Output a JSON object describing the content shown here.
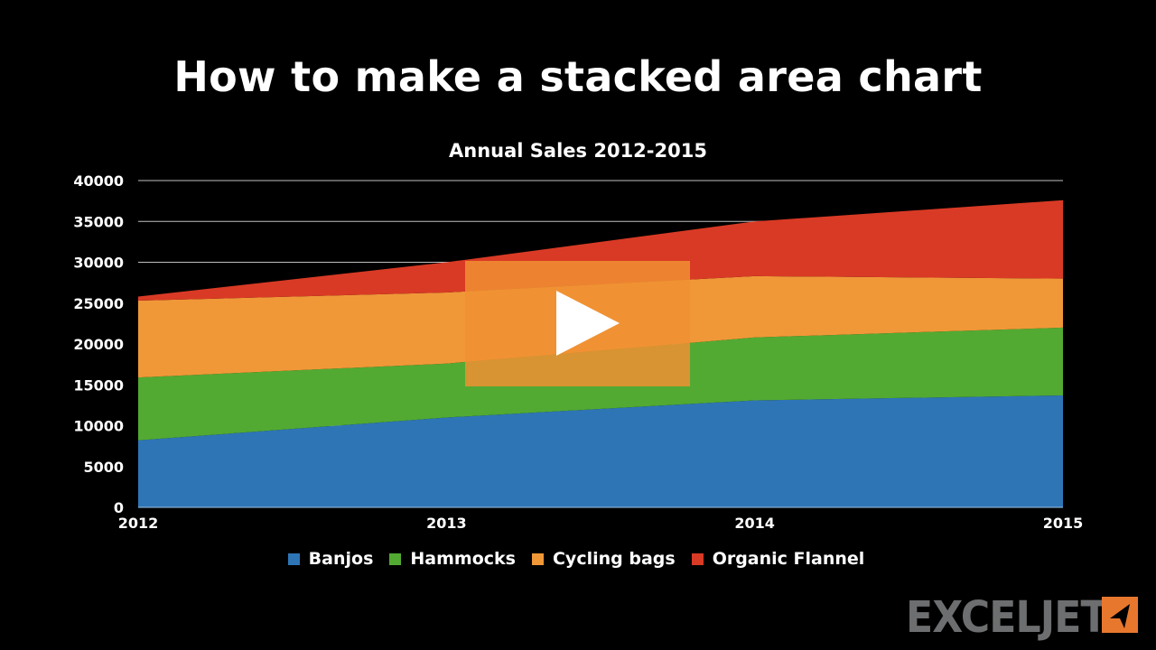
{
  "page": {
    "title": "How to make a stacked area chart",
    "play_button_label": "Play video",
    "logo_text": "EXCELJET"
  },
  "colors": {
    "banjos": "#2e75b6",
    "hammocks": "#52aa32",
    "cycling_bags": "#f09838",
    "organic_flannel": "#d93a25",
    "gridline": "#bfbfbf",
    "logo_gray": "#6d6e70",
    "logo_orange": "#e8772e"
  },
  "chart_data": {
    "type": "area",
    "stacked": true,
    "title": "Annual Sales 2012-2015",
    "xlabel": "",
    "ylabel": "",
    "categories": [
      "2012",
      "2013",
      "2014",
      "2015"
    ],
    "series": [
      {
        "name": "Banjos",
        "values": [
          8200,
          11000,
          13100,
          13700
        ]
      },
      {
        "name": "Hammocks",
        "values": [
          7700,
          6600,
          7700,
          8300
        ]
      },
      {
        "name": "Cycling bags",
        "values": [
          9400,
          8700,
          7500,
          6000
        ]
      },
      {
        "name": "Organic Flannel",
        "values": [
          500,
          3700,
          6700,
          9600
        ]
      }
    ],
    "ylim": [
      0,
      40000
    ],
    "yticks": [
      "0",
      "5000",
      "10000",
      "15000",
      "20000",
      "25000",
      "30000",
      "35000",
      "40000"
    ],
    "grid": true,
    "legend_position": "bottom"
  },
  "legend": [
    {
      "label": "Banjos"
    },
    {
      "label": "Hammocks"
    },
    {
      "label": "Cycling bags"
    },
    {
      "label": "Organic Flannel"
    }
  ]
}
